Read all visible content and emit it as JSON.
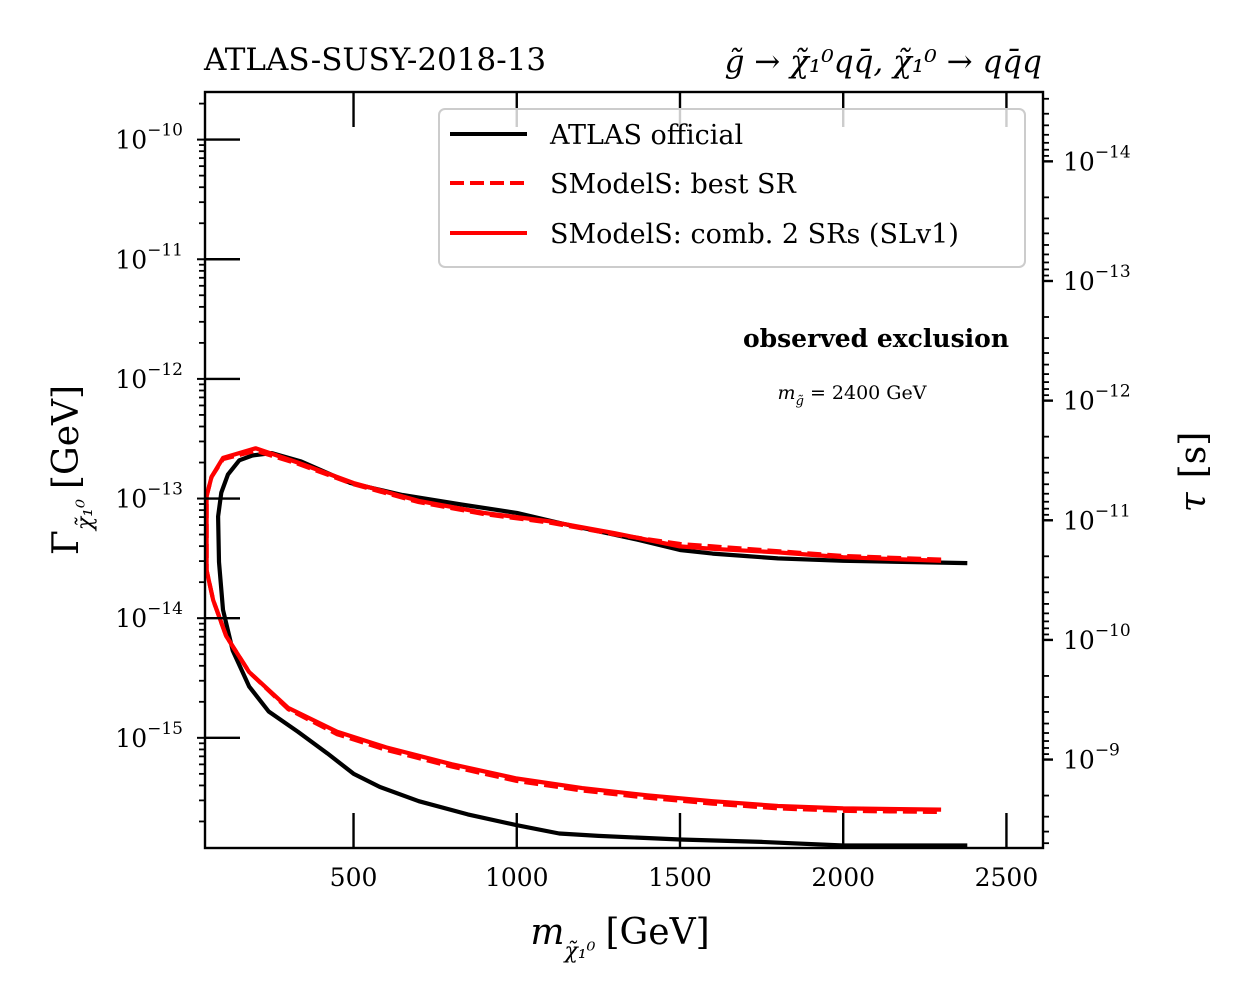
{
  "chart_data": {
    "type": "line",
    "title_left": "ATLAS-SUSY-2018-13",
    "title_right": "g̃ → χ̃₁⁰qq̄, χ̃₁⁰ → qq̄q",
    "xlabel": "m_χ̃₁⁰ [GeV]",
    "xlabel_parts": {
      "main": "m",
      "sub": "χ̃₁⁰",
      "unit": "[GeV]"
    },
    "ylabel": "Γ_χ̃₁⁰ [GeV]",
    "ylabel_parts": {
      "main": "Γ",
      "sub": "χ̃₁⁰",
      "unit": "[GeV]"
    },
    "ylabel_right": "τ [s]",
    "ylabel_right_parts": {
      "main": "τ",
      "unit": "[s]"
    },
    "xscale": "linear",
    "yscale": "log",
    "xlim": [
      45,
      2612
    ],
    "ylim": [
      1.2e-16,
      2.5e-10
    ],
    "ylim_right_note": "τ = ħ/Γ",
    "xticks": [
      500,
      1000,
      1500,
      2000,
      2500
    ],
    "xtick_labels": [
      "500",
      "1000",
      "1500",
      "2000",
      "2500"
    ],
    "yticks_exp": [
      -10,
      -11,
      -12,
      -13,
      -14,
      -15
    ],
    "ytick_labels": [
      {
        "base": "10",
        "exp": "−10"
      },
      {
        "base": "10",
        "exp": "−11"
      },
      {
        "base": "10",
        "exp": "−12"
      },
      {
        "base": "10",
        "exp": "−13"
      },
      {
        "base": "10",
        "exp": "−14"
      },
      {
        "base": "10",
        "exp": "−15"
      }
    ],
    "yticks_right_exp": [
      -14,
      -13,
      -12,
      -11,
      -10,
      -9
    ],
    "ytick_right_labels": [
      {
        "base": "10",
        "exp": "−14"
      },
      {
        "base": "10",
        "exp": "−13"
      },
      {
        "base": "10",
        "exp": "−12"
      },
      {
        "base": "10",
        "exp": "−11"
      },
      {
        "base": "10",
        "exp": "−10"
      },
      {
        "base": "10",
        "exp": "−9"
      }
    ],
    "grid": false,
    "legend": {
      "placement": "upper-right",
      "entries": [
        {
          "label": "ATLAS official",
          "color": "#000000",
          "style": "solid"
        },
        {
          "label": "SModelS: best SR",
          "color": "#ff0000",
          "style": "dashed"
        },
        {
          "label": "SModelS: comb. 2 SRs (SLv1)",
          "color": "#ff0000",
          "style": "solid"
        }
      ]
    },
    "annotations": [
      {
        "text": "observed exclusion",
        "weight": "bold"
      },
      {
        "text": "m_g̃ = 2400 GeV",
        "parts": {
          "main": "m",
          "sub": "g̃",
          "rest": " = 2400 GeV"
        }
      }
    ],
    "series": [
      {
        "name": "ATLAS official",
        "color": "#000000",
        "style": "solid",
        "points_log10_gamma": [
          [
            2380,
            -13.54
          ],
          [
            2000,
            -13.52
          ],
          [
            1800,
            -13.5
          ],
          [
            1700,
            -13.48
          ],
          [
            1600,
            -13.46
          ],
          [
            1500,
            -13.43
          ],
          [
            1380,
            -13.35
          ],
          [
            1260,
            -13.28
          ],
          [
            1140,
            -13.21
          ],
          [
            1000,
            -13.12
          ],
          [
            830,
            -13.05
          ],
          [
            650,
            -12.97
          ],
          [
            490,
            -12.87
          ],
          [
            340,
            -12.69
          ],
          [
            250,
            -12.62
          ],
          [
            190,
            -12.64
          ],
          [
            150,
            -12.68
          ],
          [
            115,
            -12.8
          ],
          [
            95,
            -12.95
          ],
          [
            85,
            -13.15
          ],
          [
            88,
            -13.53
          ],
          [
            100,
            -13.93
          ],
          [
            130,
            -14.27
          ],
          [
            180,
            -14.57
          ],
          [
            240,
            -14.78
          ],
          [
            330,
            -14.95
          ],
          [
            420,
            -15.13
          ],
          [
            500,
            -15.3
          ],
          [
            580,
            -15.41
          ],
          [
            700,
            -15.53
          ],
          [
            850,
            -15.64
          ],
          [
            1000,
            -15.73
          ],
          [
            1130,
            -15.8
          ],
          [
            1250,
            -15.82
          ],
          [
            1500,
            -15.85
          ],
          [
            1750,
            -15.87
          ],
          [
            2000,
            -15.9
          ],
          [
            2380,
            -15.9
          ]
        ]
      },
      {
        "name": "SModelS: best SR",
        "color": "#ff0000",
        "style": "dashed",
        "points_log10_gamma": [
          [
            2300,
            -13.51
          ],
          [
            2000,
            -13.48
          ],
          [
            1800,
            -13.44
          ],
          [
            1600,
            -13.4
          ],
          [
            1500,
            -13.38
          ],
          [
            1300,
            -13.3
          ],
          [
            1100,
            -13.2
          ],
          [
            900,
            -13.13
          ],
          [
            700,
            -13.03
          ],
          [
            500,
            -12.88
          ],
          [
            330,
            -12.71
          ],
          [
            200,
            -12.6
          ],
          [
            100,
            -12.67
          ],
          [
            65,
            -12.82
          ],
          [
            50,
            -12.98
          ],
          [
            50,
            -13.6
          ],
          [
            70,
            -13.85
          ],
          [
            110,
            -14.15
          ],
          [
            180,
            -14.45
          ],
          [
            300,
            -14.76
          ],
          [
            450,
            -14.97
          ],
          [
            600,
            -15.1
          ],
          [
            800,
            -15.24
          ],
          [
            1000,
            -15.36
          ],
          [
            1200,
            -15.44
          ],
          [
            1400,
            -15.5
          ],
          [
            1600,
            -15.55
          ],
          [
            1800,
            -15.59
          ],
          [
            2000,
            -15.61
          ],
          [
            2300,
            -15.62
          ]
        ]
      },
      {
        "name": "SModelS: comb. 2 SRs (SLv1)",
        "color": "#ff0000",
        "style": "solid",
        "points_log10_gamma": [
          [
            2300,
            -13.52
          ],
          [
            2000,
            -13.49
          ],
          [
            1800,
            -13.45
          ],
          [
            1600,
            -13.42
          ],
          [
            1500,
            -13.4
          ],
          [
            1300,
            -13.29
          ],
          [
            1100,
            -13.19
          ],
          [
            900,
            -13.12
          ],
          [
            700,
            -13.02
          ],
          [
            500,
            -12.87
          ],
          [
            330,
            -12.7
          ],
          [
            200,
            -12.58
          ],
          [
            100,
            -12.66
          ],
          [
            65,
            -12.82
          ],
          [
            50,
            -12.98
          ],
          [
            50,
            -13.6
          ],
          [
            70,
            -13.85
          ],
          [
            110,
            -14.15
          ],
          [
            180,
            -14.45
          ],
          [
            300,
            -14.75
          ],
          [
            450,
            -14.95
          ],
          [
            600,
            -15.08
          ],
          [
            800,
            -15.22
          ],
          [
            1000,
            -15.34
          ],
          [
            1200,
            -15.42
          ],
          [
            1400,
            -15.48
          ],
          [
            1600,
            -15.53
          ],
          [
            1800,
            -15.57
          ],
          [
            2000,
            -15.59
          ],
          [
            2300,
            -15.6
          ]
        ]
      }
    ]
  }
}
